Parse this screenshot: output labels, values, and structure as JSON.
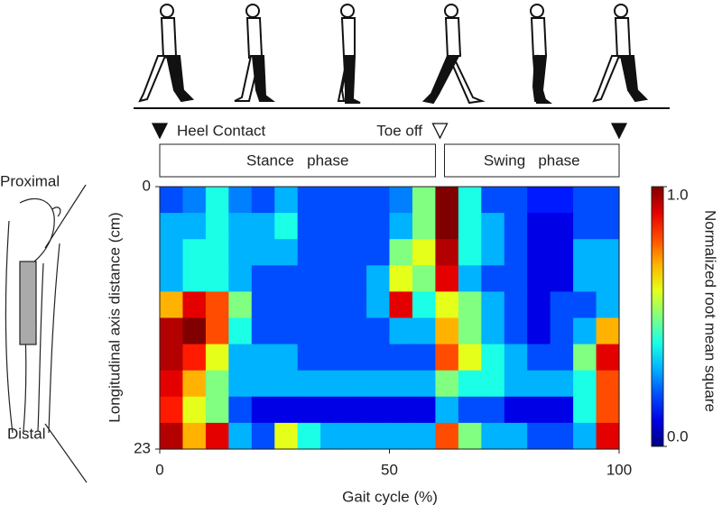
{
  "chart_data": {
    "type": "heatmap",
    "xlabel": "Gait cycle (%)",
    "ylabel": "Longitudinal axis distance (cm)",
    "colorbar_label": "Normalized root mean square",
    "colormap": "jet",
    "xlim": [
      0,
      100
    ],
    "xticks": [
      0,
      50,
      100
    ],
    "ylim": [
      0,
      23
    ],
    "yticks": [
      0,
      23
    ],
    "y_inverted": true,
    "clim": [
      0,
      1
    ],
    "cticks": [
      {
        "value": 1,
        "label": "1.0"
      },
      {
        "value": 0,
        "label": "0.0"
      }
    ],
    "side_labels": {
      "top": "Proximal",
      "bottom": "Distal"
    },
    "annotations": [
      "Heel Contact",
      "Toe off"
    ],
    "markers": [
      {
        "x": 0,
        "filled": true
      },
      {
        "x": 61,
        "filled": false
      },
      {
        "x": 100,
        "filled": true
      }
    ],
    "phases": [
      {
        "label": "Stance   phase",
        "start": 0,
        "end": 61
      },
      {
        "label": "Swing   phase",
        "start": 61,
        "end": 100
      }
    ],
    "x": [
      2.5,
      7.5,
      12.5,
      17.5,
      22.5,
      27.5,
      32.5,
      37.5,
      42.5,
      47.5,
      52.5,
      57.5,
      62.5,
      67.5,
      72.5,
      77.5,
      82.5,
      87.5,
      92.5,
      97.5
    ],
    "y": [
      1.15,
      3.45,
      5.75,
      8.05,
      10.35,
      12.65,
      14.95,
      17.25,
      19.55,
      21.85
    ],
    "values": [
      [
        0.2,
        0.25,
        0.4,
        0.25,
        0.2,
        0.3,
        0.2,
        0.2,
        0.2,
        0.2,
        0.25,
        0.5,
        1.0,
        0.4,
        0.2,
        0.2,
        0.15,
        0.15,
        0.2,
        0.2
      ],
      [
        0.3,
        0.3,
        0.4,
        0.3,
        0.3,
        0.4,
        0.2,
        0.2,
        0.2,
        0.2,
        0.3,
        0.5,
        1.0,
        0.4,
        0.3,
        0.2,
        0.1,
        0.1,
        0.2,
        0.2
      ],
      [
        0.3,
        0.4,
        0.4,
        0.3,
        0.3,
        0.3,
        0.2,
        0.2,
        0.2,
        0.2,
        0.5,
        0.6,
        0.95,
        0.4,
        0.3,
        0.2,
        0.1,
        0.1,
        0.3,
        0.3
      ],
      [
        0.3,
        0.4,
        0.4,
        0.3,
        0.2,
        0.2,
        0.2,
        0.2,
        0.2,
        0.3,
        0.6,
        0.5,
        0.9,
        0.3,
        0.2,
        0.2,
        0.1,
        0.1,
        0.3,
        0.3
      ],
      [
        0.7,
        0.9,
        0.8,
        0.5,
        0.2,
        0.2,
        0.2,
        0.2,
        0.2,
        0.3,
        0.9,
        0.4,
        0.6,
        0.5,
        0.3,
        0.2,
        0.1,
        0.2,
        0.2,
        0.3
      ],
      [
        0.95,
        1.0,
        0.8,
        0.4,
        0.2,
        0.2,
        0.2,
        0.2,
        0.2,
        0.2,
        0.3,
        0.3,
        0.7,
        0.5,
        0.3,
        0.2,
        0.1,
        0.2,
        0.3,
        0.7
      ],
      [
        0.95,
        0.85,
        0.6,
        0.3,
        0.3,
        0.3,
        0.2,
        0.2,
        0.2,
        0.2,
        0.2,
        0.2,
        0.8,
        0.6,
        0.4,
        0.3,
        0.2,
        0.2,
        0.5,
        0.9
      ],
      [
        0.9,
        0.7,
        0.5,
        0.3,
        0.3,
        0.3,
        0.3,
        0.3,
        0.3,
        0.3,
        0.3,
        0.3,
        0.5,
        0.4,
        0.4,
        0.3,
        0.3,
        0.3,
        0.4,
        0.8
      ],
      [
        0.85,
        0.6,
        0.5,
        0.2,
        0.1,
        0.1,
        0.1,
        0.1,
        0.1,
        0.1,
        0.1,
        0.1,
        0.3,
        0.2,
        0.2,
        0.1,
        0.1,
        0.1,
        0.4,
        0.8
      ],
      [
        0.95,
        0.7,
        0.9,
        0.3,
        0.2,
        0.6,
        0.4,
        0.3,
        0.3,
        0.3,
        0.3,
        0.3,
        0.8,
        0.5,
        0.3,
        0.3,
        0.2,
        0.2,
        0.3,
        0.9
      ]
    ]
  }
}
